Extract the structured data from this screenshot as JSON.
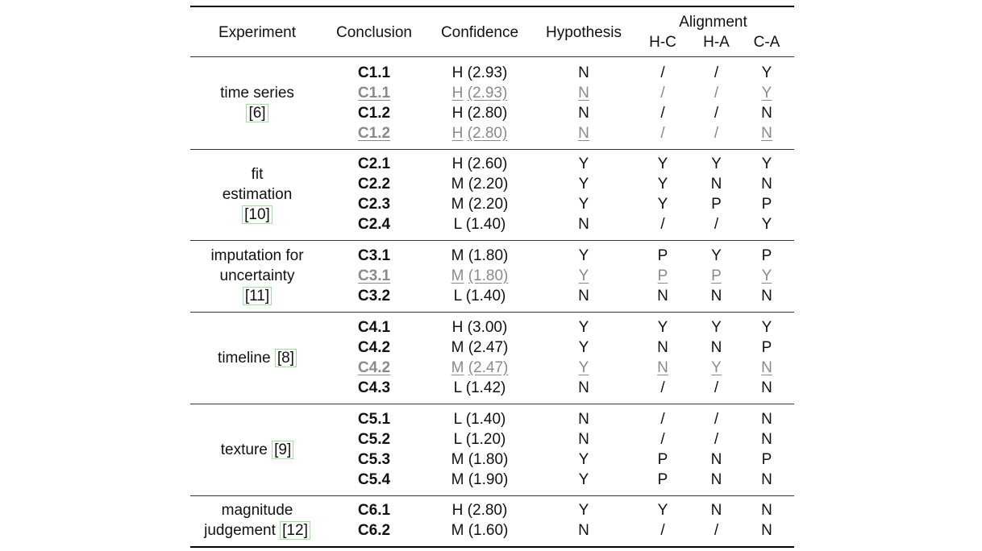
{
  "headers": {
    "experiment": "Experiment",
    "conclusion": "Conclusion",
    "confidence": "Confidence",
    "hypothesis": "Hypothesis",
    "alignment": "Alignment",
    "hc": "H-C",
    "ha": "H-A",
    "ca": "C-A"
  },
  "groups": [
    {
      "exp_lines": [
        "time series"
      ],
      "cite": "[6]",
      "cite_inline": false,
      "rows": [
        {
          "c": "C1.1",
          "conf": "H (2.93)",
          "h": "N",
          "hc": "/",
          "ha": "/",
          "ca": "Y",
          "gray": false
        },
        {
          "c": "C1.1",
          "conf": "H (2.93)",
          "h": "N",
          "hc": "/",
          "ha": "/",
          "ca": "Y",
          "gray": true
        },
        {
          "c": "C1.2",
          "conf": "H (2.80)",
          "h": "N",
          "hc": "/",
          "ha": "/",
          "ca": "N",
          "gray": false
        },
        {
          "c": "C1.2",
          "conf": "H (2.80)",
          "h": "N",
          "hc": "/",
          "ha": "/",
          "ca": "N",
          "gray": true
        }
      ]
    },
    {
      "exp_lines": [
        "fit",
        "estimation"
      ],
      "cite": "[10]",
      "cite_inline": false,
      "rows": [
        {
          "c": "C2.1",
          "conf": "H (2.60)",
          "h": "Y",
          "hc": "Y",
          "ha": "Y",
          "ca": "Y",
          "gray": false
        },
        {
          "c": "C2.2",
          "conf": "M (2.20)",
          "h": "Y",
          "hc": "Y",
          "ha": "N",
          "ca": "N",
          "gray": false
        },
        {
          "c": "C2.3",
          "conf": "M (2.20)",
          "h": "Y",
          "hc": "Y",
          "ha": "P",
          "ca": "P",
          "gray": false
        },
        {
          "c": "C2.4",
          "conf": "L (1.40)",
          "h": "N",
          "hc": "/",
          "ha": "/",
          "ca": "Y",
          "gray": false
        }
      ]
    },
    {
      "exp_lines": [
        "imputation for",
        "uncertainty"
      ],
      "cite": "[11]",
      "cite_inline": false,
      "rows": [
        {
          "c": "C3.1",
          "conf": "M (1.80)",
          "h": "Y",
          "hc": "P",
          "ha": "Y",
          "ca": "P",
          "gray": false
        },
        {
          "c": "C3.1",
          "conf": "M (1.80)",
          "h": "Y",
          "hc": "P",
          "ha": "P",
          "ca": "Y",
          "gray": true
        },
        {
          "c": "C3.2",
          "conf": "L (1.40)",
          "h": "N",
          "hc": "N",
          "ha": "N",
          "ca": "N",
          "gray": false
        }
      ]
    },
    {
      "exp_lines": [
        "timeline"
      ],
      "cite": "[8]",
      "cite_inline": true,
      "rows": [
        {
          "c": "C4.1",
          "conf": "H (3.00)",
          "h": "Y",
          "hc": "Y",
          "ha": "Y",
          "ca": "Y",
          "gray": false
        },
        {
          "c": "C4.2",
          "conf": "M (2.47)",
          "h": "Y",
          "hc": "N",
          "ha": "N",
          "ca": "P",
          "gray": false
        },
        {
          "c": "C4.2",
          "conf": "M (2.47)",
          "h": "Y",
          "hc": "N",
          "ha": "Y",
          "ca": "N",
          "gray": true
        },
        {
          "c": "C4.3",
          "conf": "L (1.42)",
          "h": "N",
          "hc": "/",
          "ha": "/",
          "ca": "N",
          "gray": false
        }
      ]
    },
    {
      "exp_lines": [
        "texture"
      ],
      "cite": "[9]",
      "cite_inline": true,
      "rows": [
        {
          "c": "C5.1",
          "conf": "L (1.40)",
          "h": "N",
          "hc": "/",
          "ha": "/",
          "ca": "N",
          "gray": false
        },
        {
          "c": "C5.2",
          "conf": "L (1.20)",
          "h": "N",
          "hc": "/",
          "ha": "/",
          "ca": "N",
          "gray": false
        },
        {
          "c": "C5.3",
          "conf": "M (1.80)",
          "h": "Y",
          "hc": "P",
          "ha": "N",
          "ca": "P",
          "gray": false
        },
        {
          "c": "C5.4",
          "conf": "M (1.90)",
          "h": "Y",
          "hc": "P",
          "ha": "N",
          "ca": "N",
          "gray": false
        }
      ]
    },
    {
      "exp_lines": [
        "magnitude",
        "judgement"
      ],
      "cite": "[12]",
      "cite_inline": true,
      "rows": [
        {
          "c": "C6.1",
          "conf": "H (2.80)",
          "h": "Y",
          "hc": "Y",
          "ha": "N",
          "ca": "N",
          "gray": false
        },
        {
          "c": "C6.2",
          "conf": "M (1.60)",
          "h": "N",
          "hc": "/",
          "ha": "/",
          "ca": "N",
          "gray": false
        }
      ]
    }
  ]
}
